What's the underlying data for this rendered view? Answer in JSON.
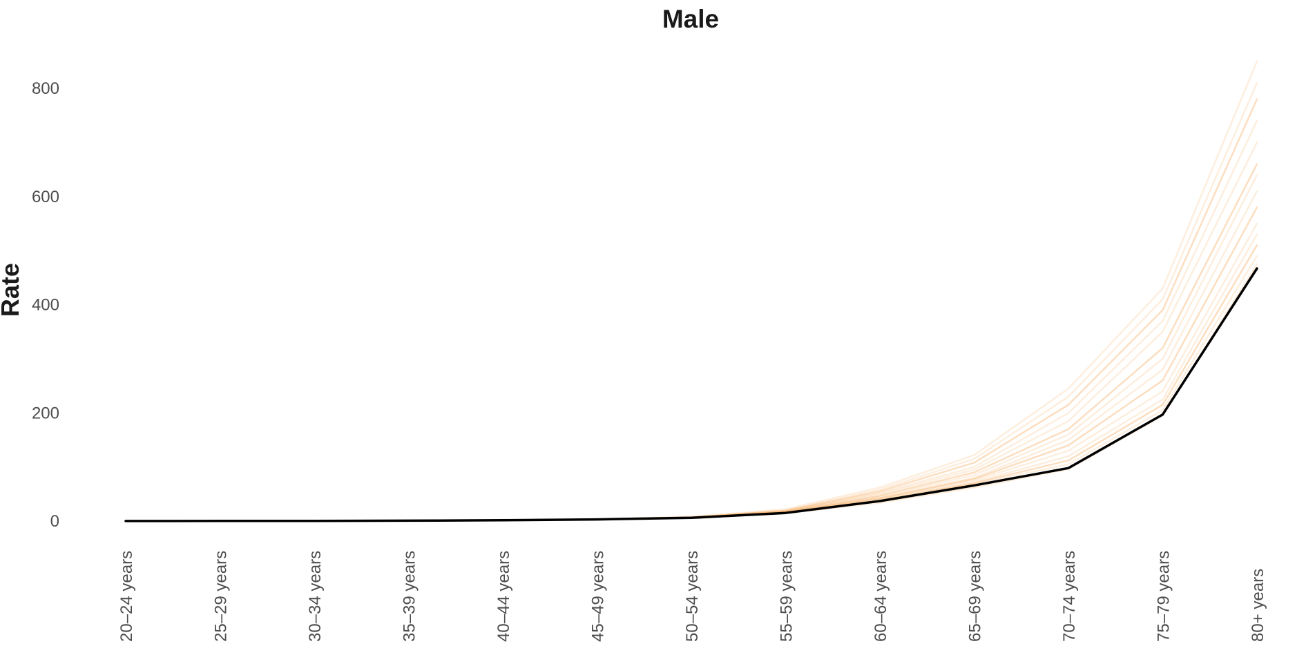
{
  "chart_data": {
    "type": "line",
    "title": "Male",
    "xlabel": "",
    "ylabel": "Rate",
    "categories": [
      "20–24 years",
      "25–29 years",
      "30–34 years",
      "35–39 years",
      "40–44 years",
      "45–49 years",
      "50–54 years",
      "55–59 years",
      "60–64 years",
      "65–69 years",
      "70–74 years",
      "75–79 years",
      "80+ years"
    ],
    "ylim": [
      0,
      850
    ],
    "yticks": [
      0,
      200,
      400,
      600,
      800
    ],
    "grid": false,
    "legend": "none",
    "highlight_color": "#000000",
    "background_series_color": "#f5a04a",
    "series": [
      {
        "highlight": true,
        "values": [
          0.1,
          0.2,
          0.4,
          0.8,
          1.5,
          3,
          6,
          15,
          37,
          66,
          98,
          197,
          467
        ]
      },
      {
        "values": [
          0.1,
          0.2,
          0.5,
          1.0,
          1.8,
          3.5,
          8,
          22,
          62,
          122,
          245,
          430,
          850
        ]
      },
      {
        "values": [
          0.1,
          0.2,
          0.5,
          1.0,
          1.8,
          3.5,
          7,
          20,
          58,
          115,
          230,
          410,
          810
        ]
      },
      {
        "values": [
          0.1,
          0.2,
          0.5,
          0.9,
          1.7,
          3.4,
          7,
          19,
          55,
          108,
          215,
          390,
          780
        ]
      },
      {
        "values": [
          0.1,
          0.2,
          0.5,
          0.9,
          1.7,
          3.3,
          7,
          18,
          52,
          100,
          200,
          370,
          740
        ]
      },
      {
        "values": [
          0.1,
          0.2,
          0.4,
          0.9,
          1.6,
          3.2,
          7,
          18,
          50,
          95,
          185,
          350,
          700
        ]
      },
      {
        "values": [
          0.1,
          0.2,
          0.4,
          0.9,
          1.6,
          3.1,
          6,
          17,
          47,
          90,
          170,
          320,
          660
        ]
      },
      {
        "values": [
          0.1,
          0.2,
          0.4,
          0.8,
          1.6,
          3.0,
          6,
          16,
          45,
          85,
          160,
          300,
          640
        ]
      },
      {
        "values": [
          0.1,
          0.2,
          0.4,
          0.8,
          1.5,
          3.0,
          6,
          16,
          43,
          80,
          150,
          280,
          610
        ]
      },
      {
        "values": [
          0.1,
          0.2,
          0.4,
          0.8,
          1.5,
          3.0,
          6,
          16,
          42,
          78,
          140,
          260,
          580
        ]
      },
      {
        "values": [
          0.1,
          0.2,
          0.4,
          0.8,
          1.5,
          3.0,
          6,
          15,
          40,
          75,
          130,
          240,
          550
        ]
      },
      {
        "values": [
          0.1,
          0.2,
          0.4,
          0.8,
          1.5,
          3.0,
          6,
          15,
          39,
          72,
          120,
          225,
          530
        ]
      },
      {
        "values": [
          0.1,
          0.2,
          0.4,
          0.8,
          1.5,
          3.0,
          6,
          15,
          38,
          70,
          112,
          215,
          510
        ]
      },
      {
        "values": [
          0.1,
          0.2,
          0.4,
          0.8,
          1.5,
          3.0,
          6,
          15,
          37,
          68,
          105,
          205,
          490
        ]
      },
      {
        "values": [
          0.1,
          0.2,
          0.4,
          0.8,
          1.4,
          2.8,
          6,
          14,
          34,
          62,
          96,
          195,
          475
        ]
      }
    ]
  }
}
